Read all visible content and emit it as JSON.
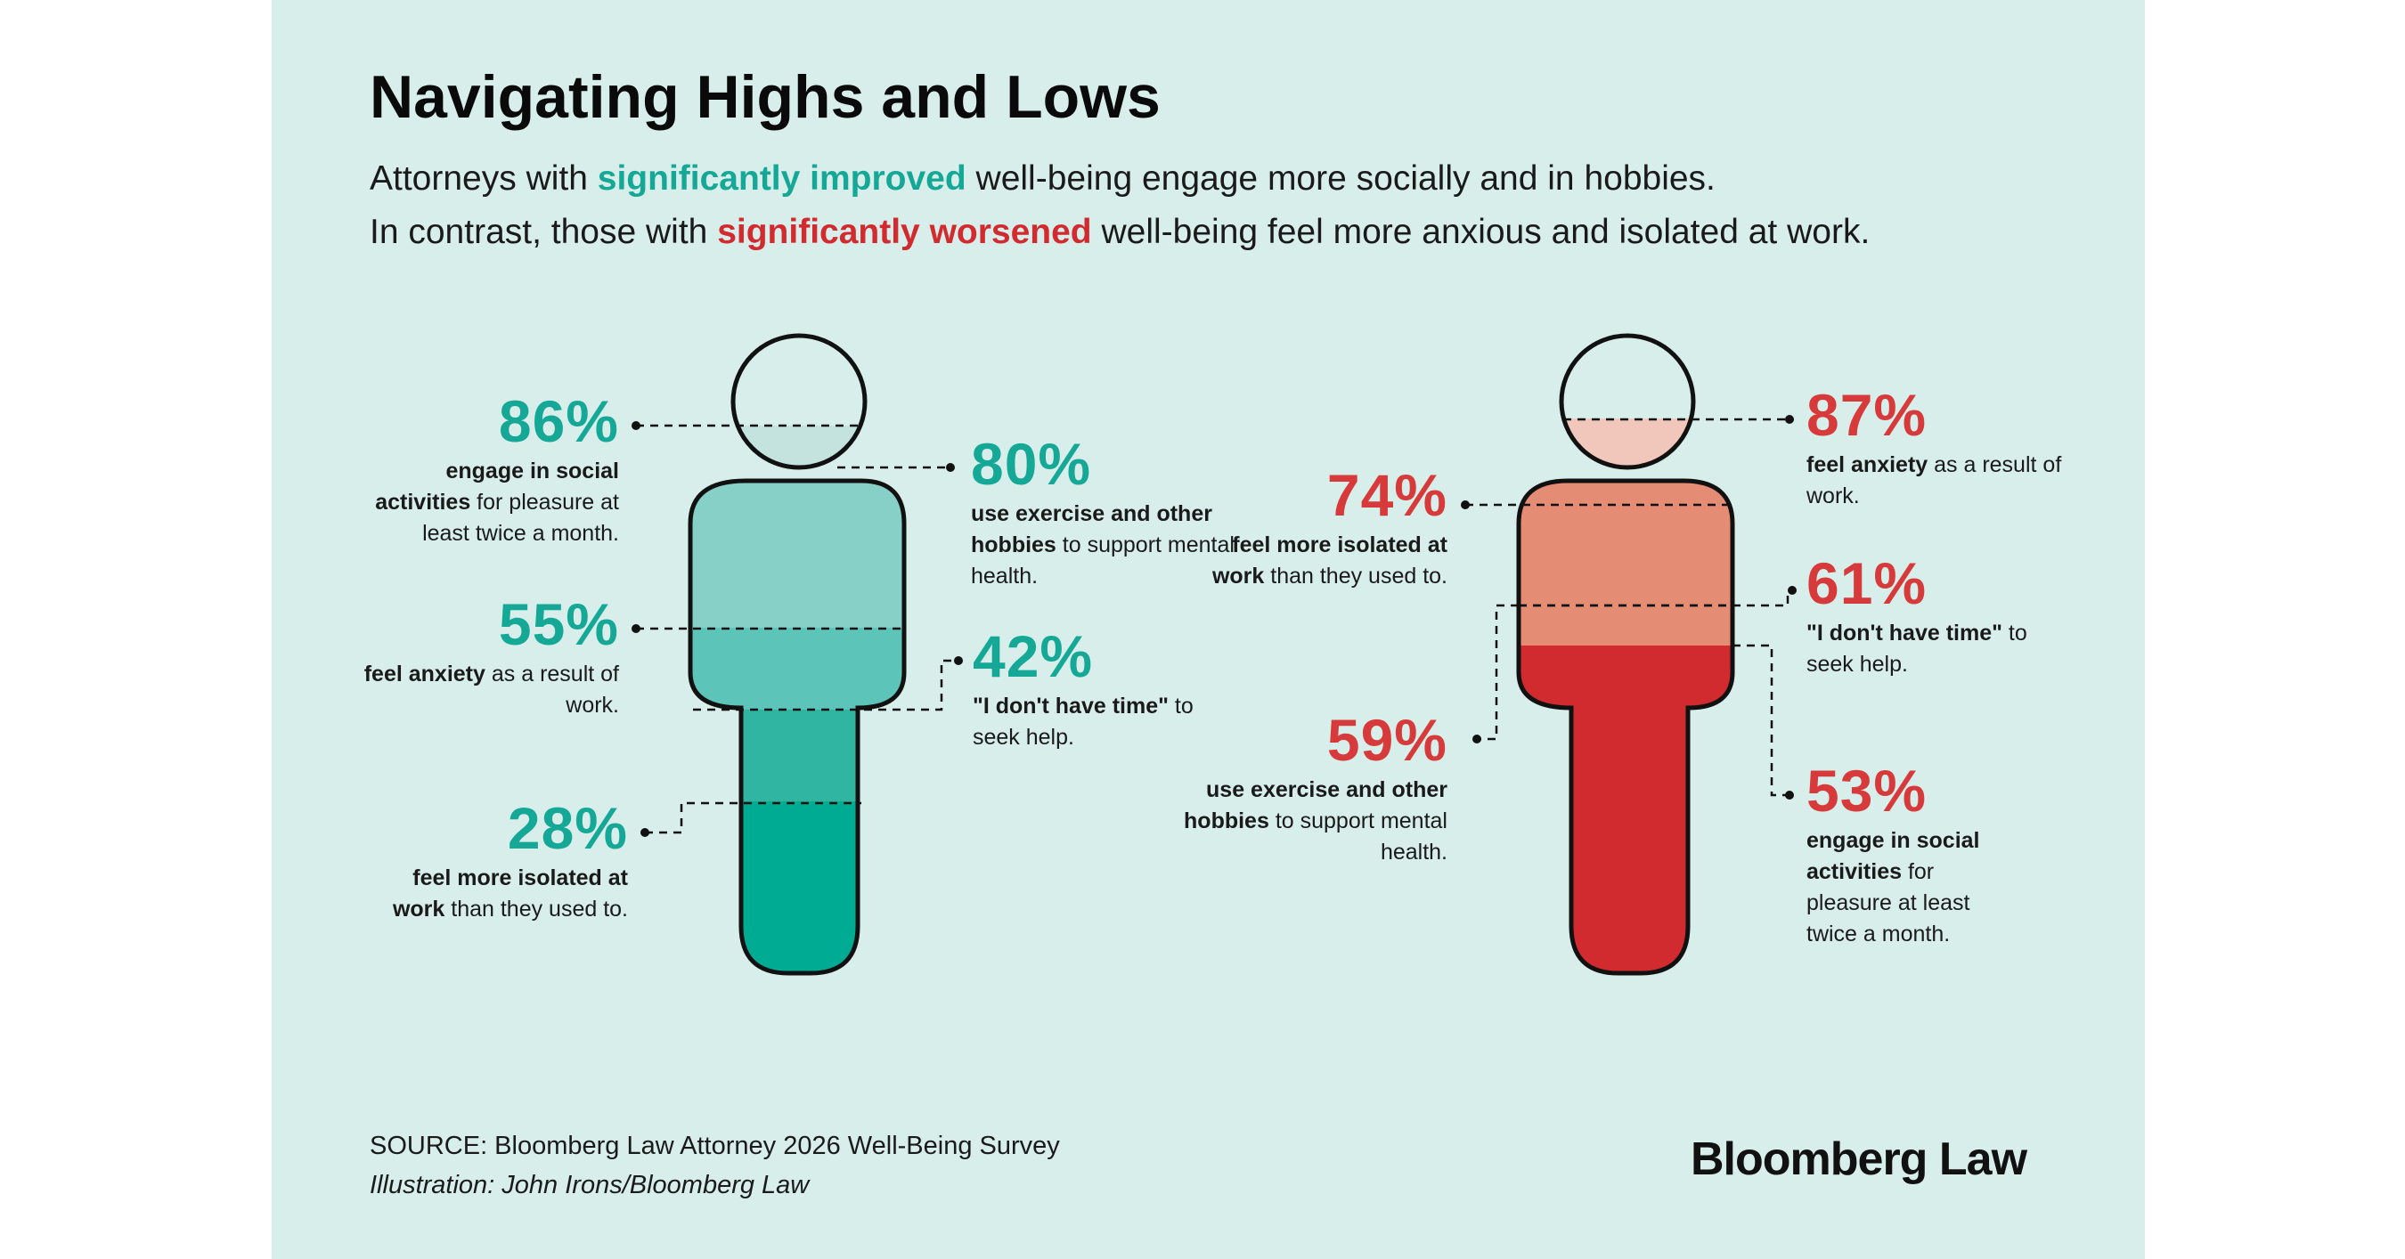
{
  "title": "Navigating Highs and Lows",
  "subtitle": {
    "line1_pre": "Attorneys with ",
    "line1_highlight": "significantly improved",
    "line1_post": " well-being engage more socially and in hobbies.",
    "line2_pre": "In contrast, those with ",
    "line2_highlight": "significantly worsened",
    "line2_post": " well-being feel more anxious and isolated at work."
  },
  "colors": {
    "background": "#d8eeeb",
    "teal_text": "#16a896",
    "red_text": "#d63a3a",
    "teal_fills": [
      "#c4e3df",
      "#86d0c7",
      "#5cc4b8",
      "#2fb5a2",
      "#00ab94"
    ],
    "red_fills": [
      "#f0c7ba",
      "#e58c74",
      "#d12a2f"
    ]
  },
  "improved": {
    "stat_86": {
      "pct": "86%",
      "bold": "engage in social activities",
      "rest": " for pleasure at least twice a month."
    },
    "stat_80": {
      "pct": "80%",
      "bold": "use exercise and other hobbies",
      "rest": " to support mental health."
    },
    "stat_55": {
      "pct": "55%",
      "bold": "feel anxiety",
      "rest": " as a result of work."
    },
    "stat_42": {
      "pct": "42%",
      "bold": "\"I don't have time\"",
      "rest": " to seek help."
    },
    "stat_28": {
      "pct": "28%",
      "bold": "feel more isolated at work",
      "rest": " than they used to."
    }
  },
  "worsened": {
    "stat_87": {
      "pct": "87%",
      "bold": "feel anxiety",
      "rest": " as a result of work."
    },
    "stat_74": {
      "pct": "74%",
      "bold": "feel more isolated at work",
      "rest": " than they used to."
    },
    "stat_61": {
      "pct": "61%",
      "bold": "\"I don't have time\"",
      "rest": " to seek help."
    },
    "stat_59": {
      "pct": "59%",
      "bold": "use exercise and other hobbies",
      "rest": " to support mental health."
    },
    "stat_53": {
      "pct": "53%",
      "bold": "engage in social activities",
      "rest": " for pleasure at least twice a month."
    }
  },
  "footer": {
    "source": "SOURCE: Bloomberg Law Attorney 2026 Well-Being Survey",
    "credit": "Illustration: John Irons/Bloomberg Law",
    "brand": "Bloomberg Law"
  }
}
